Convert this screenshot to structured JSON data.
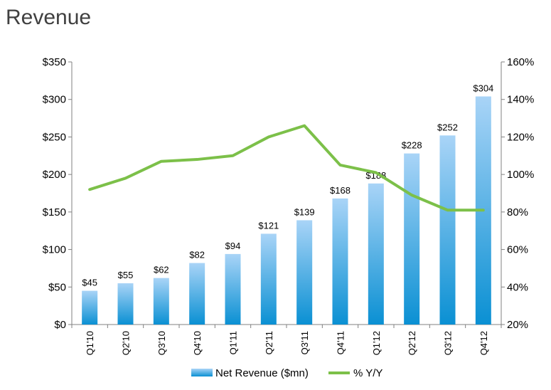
{
  "header": {
    "title": "Revenue"
  },
  "chart_data": {
    "type": "bar",
    "categories": [
      "Q1'10",
      "Q2'10",
      "Q3'10",
      "Q4'10",
      "Q1'11",
      "Q2'11",
      "Q3'11",
      "Q4'11",
      "Q1'12",
      "Q2'12",
      "Q3'12",
      "Q4'12"
    ],
    "series": [
      {
        "name": "Net Revenue ($mn)",
        "type": "bar",
        "axis": "left",
        "values": [
          45,
          55,
          62,
          82,
          94,
          121,
          139,
          168,
          188,
          228,
          252,
          304
        ],
        "labels": [
          "$45",
          "$55",
          "$62",
          "$82",
          "$94",
          "$121",
          "$139",
          "$168",
          "$188",
          "$228",
          "$252",
          "$304"
        ],
        "color_top": "#a9d4f7",
        "color_bottom": "#0a90d3"
      },
      {
        "name": "% Y/Y",
        "type": "line",
        "axis": "right",
        "values": [
          92,
          98,
          107,
          108,
          110,
          120,
          126,
          105,
          101,
          89,
          81,
          81
        ],
        "color": "#7cc049"
      }
    ],
    "y_left": {
      "range": [
        0,
        350
      ],
      "ticks": [
        0,
        50,
        100,
        150,
        200,
        250,
        300,
        350
      ],
      "tick_labels": [
        "$0",
        "$50",
        "$100",
        "$150",
        "$200",
        "$250",
        "$300",
        "$350"
      ]
    },
    "y_right": {
      "range": [
        20,
        160
      ],
      "ticks": [
        20,
        40,
        60,
        80,
        100,
        120,
        140,
        160
      ],
      "tick_labels": [
        "20%",
        "40%",
        "60%",
        "80%",
        "100%",
        "120%",
        "140%",
        "160%"
      ]
    },
    "grid": false,
    "legend": "bottom"
  }
}
